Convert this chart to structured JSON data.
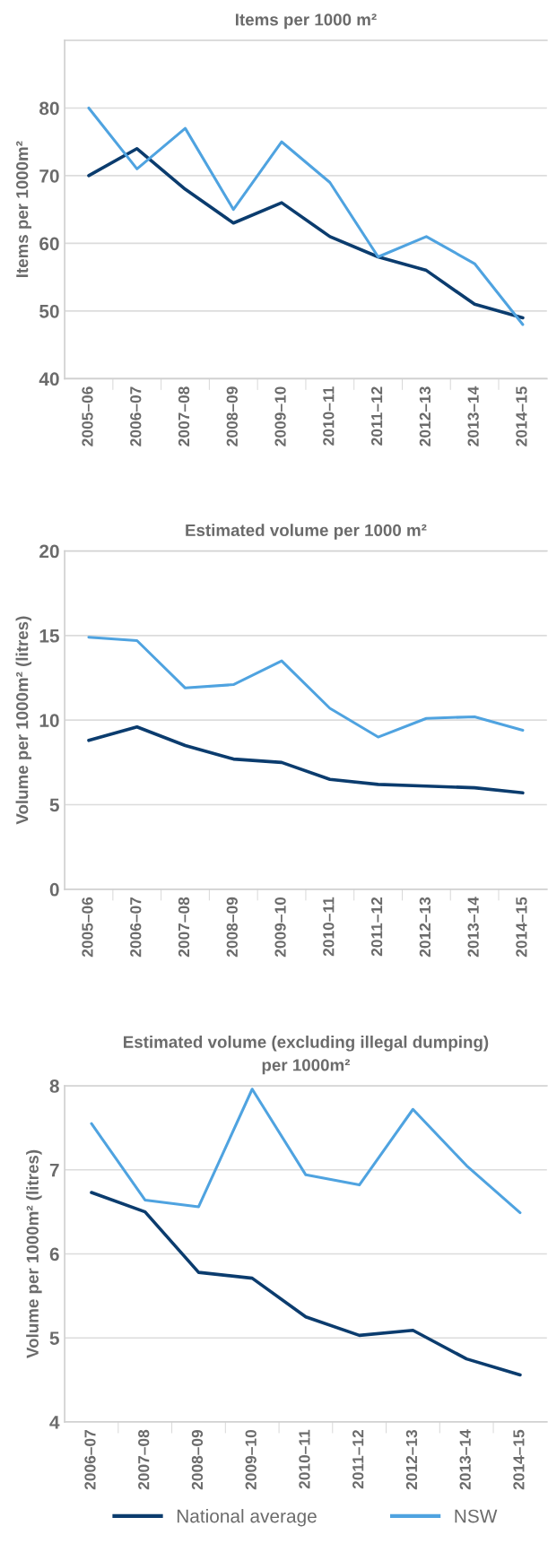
{
  "chart_data": [
    {
      "type": "line",
      "title": "Items per 1000 m²",
      "ylabel": "Items per 1000m²",
      "categories": [
        "2005–06",
        "2006–07",
        "2007–08",
        "2008–09",
        "2009–10",
        "2010–11",
        "2011–12",
        "2012–13",
        "2013–14",
        "2014–15"
      ],
      "series": [
        {
          "color": "#0b3c6e",
          "values": [
            70,
            74,
            68,
            63,
            66,
            61,
            58,
            56,
            51,
            49
          ]
        },
        {
          "color": "#4fa3e0",
          "values": [
            80,
            71,
            77,
            65,
            75,
            69,
            58,
            61,
            57,
            48
          ]
        }
      ],
      "ylim": [
        40,
        90
      ],
      "yticks": [
        40,
        50,
        60,
        70,
        80
      ],
      "grid": "y",
      "legend": false,
      "marker": "none",
      "line_style": "solid"
    },
    {
      "type": "line",
      "title": "Estimated volume per 1000 m²",
      "ylabel": "Volume per 1000m² (litres)",
      "categories": [
        "2005–06",
        "2006–07",
        "2007–08",
        "2008–09",
        "2009–10",
        "2010–11",
        "2011–12",
        "2012–13",
        "2013–14",
        "2014–15"
      ],
      "series": [
        {
          "color": "#0b3c6e",
          "values": [
            8.8,
            9.6,
            8.5,
            7.7,
            7.5,
            6.5,
            6.2,
            6.1,
            6.0,
            5.7
          ]
        },
        {
          "color": "#4fa3e0",
          "values": [
            14.9,
            14.7,
            11.9,
            12.1,
            13.5,
            10.7,
            9.0,
            10.1,
            10.2,
            9.4
          ]
        }
      ],
      "ylim": [
        0,
        20
      ],
      "yticks": [
        0,
        5,
        10,
        15,
        20
      ],
      "grid": "y",
      "legend": false,
      "marker": "none",
      "line_style": "solid"
    },
    {
      "type": "line",
      "title": "Estimated volume (excluding illegal dumping)\nper 1000m²",
      "ylabel": "Volume per 1000m² (litres)",
      "categories": [
        "2006–07",
        "2007–08",
        "2008–09",
        "2009–10",
        "2010–11",
        "2011–12",
        "2012–13",
        "2013–14",
        "2014–15"
      ],
      "series": [
        {
          "name": "National average",
          "color": "#0b3c6e",
          "values": [
            6.73,
            6.5,
            5.78,
            5.71,
            5.25,
            5.03,
            5.09,
            4.75,
            4.56
          ]
        },
        {
          "name": "NSW",
          "color": "#4fa3e0",
          "values": [
            7.55,
            6.64,
            6.56,
            7.96,
            6.94,
            6.82,
            7.72,
            7.05,
            6.49
          ]
        }
      ],
      "ylim": [
        4,
        8
      ],
      "yticks": [
        4,
        5,
        6,
        7,
        8
      ],
      "grid": "y",
      "legend": "bottom",
      "marker": "none",
      "line_style": "solid"
    }
  ]
}
